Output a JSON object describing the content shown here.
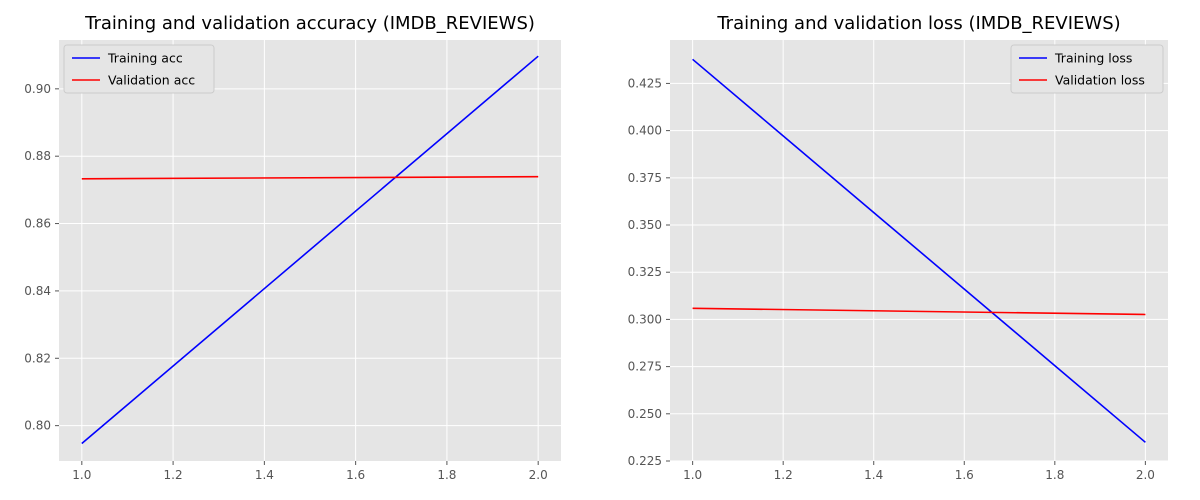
{
  "chart_data": [
    {
      "type": "line",
      "title": "Training and validation accuracy (IMDB_REVIEWS)",
      "xlabel": "",
      "ylabel": "",
      "xlim": [
        0.95,
        2.05
      ],
      "ylim": [
        0.7895,
        0.9145
      ],
      "xticks": [
        1.0,
        1.2,
        1.4,
        1.6,
        1.8,
        2.0
      ],
      "xtick_labels": [
        "1.0",
        "1.2",
        "1.4",
        "1.6",
        "1.8",
        "2.0"
      ],
      "yticks": [
        0.8,
        0.82,
        0.84,
        0.86,
        0.88,
        0.9
      ],
      "ytick_labels": [
        "0.80",
        "0.82",
        "0.84",
        "0.86",
        "0.88",
        "0.90"
      ],
      "grid": true,
      "legend_position": "top-left",
      "x": [
        1.0,
        2.0
      ],
      "series": [
        {
          "name": "Training acc",
          "values": [
            0.7947,
            0.9097
          ],
          "color": "#0000ff"
        },
        {
          "name": "Validation acc",
          "values": [
            0.8733,
            0.8739
          ],
          "color": "#ff0000"
        }
      ]
    },
    {
      "type": "line",
      "title": "Training and validation loss (IMDB_REVIEWS)",
      "xlabel": "",
      "ylabel": "",
      "xlim": [
        0.95,
        2.05
      ],
      "ylim": [
        0.225,
        0.448
      ],
      "xticks": [
        1.0,
        1.2,
        1.4,
        1.6,
        1.8,
        2.0
      ],
      "xtick_labels": [
        "1.0",
        "1.2",
        "1.4",
        "1.6",
        "1.8",
        "2.0"
      ],
      "yticks": [
        0.225,
        0.25,
        0.275,
        0.3,
        0.325,
        0.35,
        0.375,
        0.4,
        0.425
      ],
      "ytick_labels": [
        "0.225",
        "0.250",
        "0.275",
        "0.300",
        "0.325",
        "0.350",
        "0.375",
        "0.400",
        "0.425"
      ],
      "grid": true,
      "legend_position": "top-right",
      "x": [
        1.0,
        2.0
      ],
      "series": [
        {
          "name": "Training loss",
          "values": [
            0.4378,
            0.2349
          ],
          "color": "#0000ff"
        },
        {
          "name": "Validation loss",
          "values": [
            0.3059,
            0.3026
          ],
          "color": "#ff0000"
        }
      ]
    }
  ]
}
